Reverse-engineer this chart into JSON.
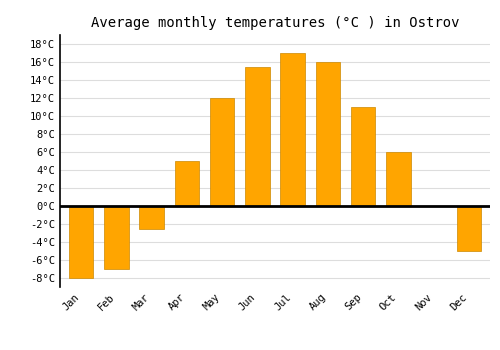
{
  "months": [
    "Jan",
    "Feb",
    "Mar",
    "Apr",
    "May",
    "Jun",
    "Jul",
    "Aug",
    "Sep",
    "Oct",
    "Nov",
    "Dec"
  ],
  "temperatures": [
    -8,
    -7,
    -2.5,
    5,
    12,
    15.5,
    17,
    16,
    11,
    6,
    0,
    -5
  ],
  "bar_color_top": "#FFA500",
  "bar_color_bottom": "#FFB833",
  "bar_edge_color": "#CC8800",
  "title": "Average monthly temperatures (°C ) in Ostrov",
  "ylim": [
    -9,
    19
  ],
  "yticks": [
    -8,
    -6,
    -4,
    -2,
    0,
    2,
    4,
    6,
    8,
    10,
    12,
    14,
    16,
    18
  ],
  "background_color": "#ffffff",
  "grid_color": "#dddddd",
  "title_fontsize": 10,
  "tick_fontsize": 7.5,
  "zero_line_color": "#000000"
}
